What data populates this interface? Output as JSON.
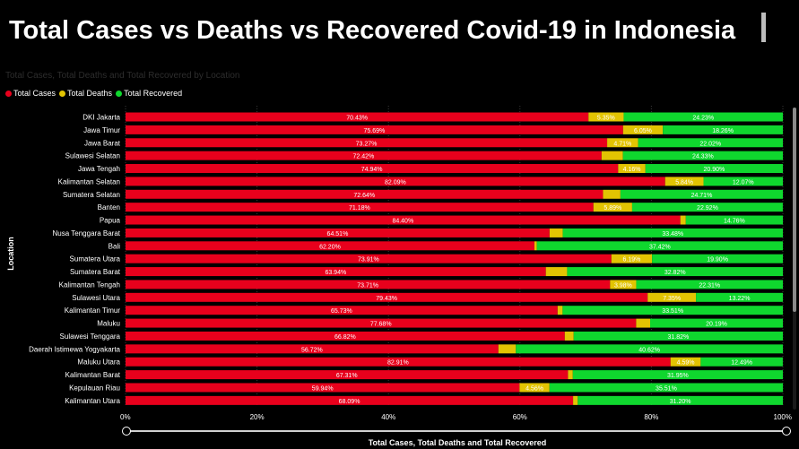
{
  "header": {
    "title": "Total Cases vs Deaths vs Recovered Covid-19 in Indonesia"
  },
  "colors": {
    "cases": "#e8001c",
    "deaths": "#e2c402",
    "recovered": "#0fd72e",
    "background": "#000000"
  },
  "chart_data": {
    "type": "bar",
    "orientation": "horizontal",
    "stacked": "100%",
    "subtitle": "Total Cases, Total Deaths and Total Recovered by Location",
    "xlabel": "Total Cases, Total Deaths and Total Recovered",
    "ylabel": "Location",
    "xlim": [
      0,
      100
    ],
    "xticks": [
      "0%",
      "20%",
      "40%",
      "60%",
      "80%",
      "100%"
    ],
    "grid": true,
    "legend_position": "top-left",
    "categories": [
      "DKI Jakarta",
      "Jawa Timur",
      "Jawa Barat",
      "Sulawesi Selatan",
      "Jawa Tengah",
      "Kalimantan Selatan",
      "Sumatera Selatan",
      "Banten",
      "Papua",
      "Nusa Tenggara Barat",
      "Bali",
      "Sumatera Utara",
      "Sumatera Barat",
      "Kalimantan Tengah",
      "Sulawesi Utara",
      "Kalimantan Timur",
      "Maluku",
      "Sulawesi Tenggara",
      "Daerah Istimewa Yogyakarta",
      "Maluku Utara",
      "Kalimantan Barat",
      "Kepulauan Riau",
      "Kalimantan Utara"
    ],
    "series": [
      {
        "name": "Total Cases",
        "values": [
          70.43,
          75.69,
          73.27,
          72.42,
          74.94,
          82.09,
          72.64,
          71.18,
          84.4,
          64.51,
          62.2,
          73.91,
          63.94,
          73.71,
          79.43,
          65.73,
          77.68,
          66.82,
          56.72,
          82.91,
          67.31,
          59.94,
          68.09
        ],
        "labels": [
          "70.43%",
          "75.69%",
          "73.27%",
          "72.42%",
          "74.94%",
          "82.09%",
          "72.64%",
          "71.18%",
          "84.40%",
          "64.51%",
          "62.20%",
          "73.91%",
          "63.94%",
          "73.71%",
          "79.43%",
          "65.73%",
          "77.68%",
          "66.82%",
          "56.72%",
          "82.91%",
          "67.31%",
          "59.94%",
          "68.09%"
        ]
      },
      {
        "name": "Total Deaths",
        "values": [
          5.35,
          6.05,
          4.71,
          3.25,
          4.16,
          5.84,
          2.65,
          5.89,
          0.84,
          2.01,
          0.38,
          6.19,
          3.24,
          3.98,
          7.35,
          0.76,
          2.13,
          1.36,
          2.66,
          4.59,
          0.74,
          4.56,
          0.71
        ],
        "labels": [
          "5.35%",
          "6.05%",
          "4.71%",
          "",
          "4.16%",
          "5.84%",
          "",
          "5.89%",
          "",
          "",
          "",
          "6.19%",
          "",
          "3.98%",
          "7.35%",
          "",
          "",
          "",
          "",
          "4.59%",
          "",
          "4.56%",
          ""
        ]
      },
      {
        "name": "Total Recovered",
        "values": [
          24.23,
          18.26,
          22.02,
          24.33,
          20.9,
          12.07,
          24.71,
          22.92,
          14.76,
          33.48,
          37.42,
          19.9,
          32.82,
          22.31,
          13.22,
          33.51,
          20.19,
          31.82,
          40.62,
          12.49,
          31.95,
          35.51,
          31.2
        ],
        "labels": [
          "24.23%",
          "18.26%",
          "22.02%",
          "24.33%",
          "20.90%",
          "12.07%",
          "24.71%",
          "22.92%",
          "14.76%",
          "33.48%",
          "37.42%",
          "19.90%",
          "32.82%",
          "22.31%",
          "13.22%",
          "33.51%",
          "20.19%",
          "31.82%",
          "40.62%",
          "12.49%",
          "31.95%",
          "35.51%",
          "31.20%"
        ]
      }
    ]
  }
}
